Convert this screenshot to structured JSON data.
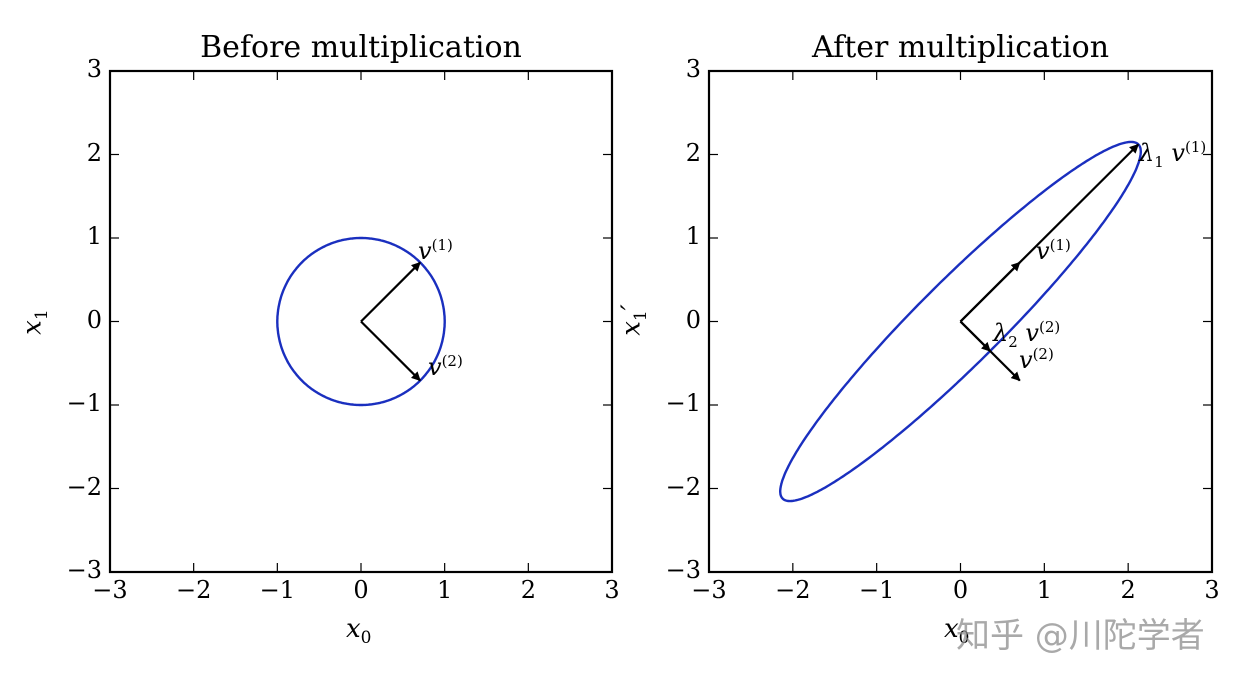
{
  "chart_data": [
    {
      "type": "line",
      "title": "Before multiplication",
      "xlabel": "x_0",
      "ylabel": "x_1",
      "xlim": [
        -3,
        3
      ],
      "ylim": [
        -3,
        3
      ],
      "xticks": [
        -3,
        -2,
        -1,
        0,
        1,
        2,
        3
      ],
      "yticks": [
        -3,
        -2,
        -1,
        0,
        1,
        2,
        3
      ],
      "grid": false,
      "series": [
        {
          "name": "unit circle",
          "shape": "circle",
          "center": [
            0,
            0
          ],
          "radius": 1,
          "color": "#1a2fbf"
        }
      ],
      "arrows": [
        {
          "name": "v(1)",
          "from": [
            0,
            0
          ],
          "to": [
            0.707,
            0.707
          ],
          "label": "v",
          "sup": "(1)"
        },
        {
          "name": "v(2)",
          "from": [
            0,
            0
          ],
          "to": [
            0.707,
            -0.707
          ],
          "label": "v",
          "sup": "(2)"
        }
      ]
    },
    {
      "type": "line",
      "title": "After multiplication",
      "xlabel": "x_0'",
      "ylabel": "x_1'",
      "xlim": [
        -3,
        3
      ],
      "ylim": [
        -3,
        3
      ],
      "xticks": [
        -3,
        -2,
        -1,
        0,
        1,
        2,
        3
      ],
      "yticks": [
        -3,
        -2,
        -1,
        0,
        1,
        2,
        3
      ],
      "grid": false,
      "series": [
        {
          "name": "transformed ellipse",
          "shape": "ellipse",
          "center": [
            0,
            0
          ],
          "semi_major": 3.0,
          "semi_minor": 0.5,
          "angle_deg": 45,
          "color": "#1a2fbf"
        }
      ],
      "arrows": [
        {
          "name": "lambda1 v(1)",
          "from": [
            0,
            0
          ],
          "to": [
            2.12,
            2.12
          ],
          "label": "λ₁ v",
          "sup": "(1)"
        },
        {
          "name": "v(1)",
          "from": [
            0,
            0
          ],
          "to": [
            0.707,
            0.707
          ],
          "label": "v",
          "sup": "(1)"
        },
        {
          "name": "lambda2 v(2)",
          "from": [
            0,
            0
          ],
          "to": [
            0.354,
            -0.354
          ],
          "label": "λ₂ v",
          "sup": "(2)"
        },
        {
          "name": "v(2)",
          "from": [
            0,
            0
          ],
          "to": [
            0.707,
            -0.707
          ],
          "label": "v",
          "sup": "(2)"
        }
      ]
    }
  ],
  "left": {
    "title": "Before multiplication",
    "xlabel_main": "x",
    "xlabel_sub": "0",
    "ylabel_main": "x",
    "ylabel_sub": "1",
    "v1_main": "v",
    "v1_sup": "(1)",
    "v2_main": "v",
    "v2_sup": "(2)"
  },
  "right": {
    "title": "After multiplication",
    "xlabel_main": "x",
    "xlabel_sub": "0",
    "ylabel_main": "x",
    "ylabel_sub": "1",
    "ylabel_prime": "′",
    "l1v1_lambda": "λ",
    "l1v1_lambda_sub": "1",
    "l1v1_main": "v",
    "l1v1_sup": "(1)",
    "v1_main": "v",
    "v1_sup": "(1)",
    "l2v2_lambda": "λ",
    "l2v2_lambda_sub": "2",
    "l2v2_main": "v",
    "l2v2_sup": "(2)",
    "v2_main": "v",
    "v2_sup": "(2)"
  },
  "ticks": [
    "−3",
    "−2",
    "−1",
    "0",
    "1",
    "2",
    "3"
  ],
  "colors": {
    "curve": "#1a2fbf",
    "axes": "#000000",
    "arrows": "#000000"
  },
  "watermark": "知乎 @川陀学者"
}
